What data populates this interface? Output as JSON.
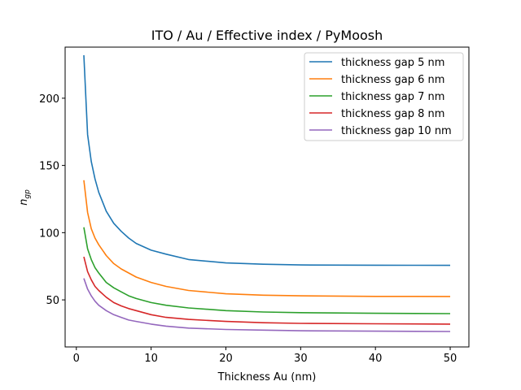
{
  "chart_data": {
    "type": "line",
    "title": "ITO / Au / Effective index / PyMoosh",
    "xlabel": "Thickness Au (nm)",
    "ylabel_main": "n",
    "ylabel_sub": "gp",
    "xlim": [
      -1.5,
      52.5
    ],
    "ylim": [
      15,
      238
    ],
    "xticks": [
      0,
      10,
      20,
      30,
      40,
      50
    ],
    "yticks": [
      50,
      100,
      150,
      200
    ],
    "grid": false,
    "legend_position": "top-right",
    "series": [
      {
        "name": "thickness gap 5 nm",
        "color": "#1f77b4",
        "x": [
          1,
          1.5,
          2,
          2.5,
          3,
          4,
          5,
          6,
          7,
          8,
          10,
          12,
          15,
          20,
          25,
          30,
          40,
          50
        ],
        "y": [
          232,
          173,
          153,
          140,
          130,
          116,
          107,
          101,
          96,
          92,
          87,
          84,
          80,
          77.5,
          76.5,
          76,
          75.8,
          75.7
        ]
      },
      {
        "name": "thickness gap 6 nm",
        "color": "#ff7f0e",
        "x": [
          1,
          1.5,
          2,
          2.5,
          3,
          4,
          5,
          6,
          7,
          8,
          10,
          12,
          15,
          20,
          25,
          30,
          40,
          50
        ],
        "y": [
          139,
          115,
          103,
          96,
          91,
          83,
          77,
          73,
          70,
          67,
          63,
          60,
          57,
          54.5,
          53.5,
          53,
          52.6,
          52.5
        ]
      },
      {
        "name": "thickness gap 7 nm",
        "color": "#2ca02c",
        "x": [
          1,
          1.5,
          2,
          2.5,
          3,
          4,
          5,
          6,
          7,
          8,
          10,
          12,
          15,
          20,
          25,
          30,
          40,
          50
        ],
        "y": [
          104,
          88,
          80,
          74,
          70,
          63,
          59,
          56,
          53,
          51,
          48,
          46,
          44,
          42,
          41,
          40.5,
          40,
          39.8
        ]
      },
      {
        "name": "thickness gap 8 nm",
        "color": "#d62728",
        "x": [
          1,
          1.5,
          2,
          2.5,
          3,
          4,
          5,
          6,
          7,
          8,
          10,
          12,
          15,
          20,
          25,
          30,
          40,
          50
        ],
        "y": [
          82,
          71,
          65,
          60,
          57,
          52,
          48,
          45.5,
          43.5,
          42,
          39,
          37,
          35.5,
          34,
          33,
          32.5,
          32.2,
          32
        ]
      },
      {
        "name": "thickness gap 10 nm",
        "color": "#9467bd",
        "x": [
          1,
          1.5,
          2,
          2.5,
          3,
          4,
          5,
          6,
          7,
          8,
          10,
          12,
          15,
          20,
          25,
          30,
          40,
          50
        ],
        "y": [
          66,
          58,
          53,
          49,
          46,
          42,
          39,
          37,
          35,
          34,
          32,
          30.5,
          29,
          28,
          27.5,
          27,
          26.7,
          26.5
        ]
      }
    ]
  }
}
